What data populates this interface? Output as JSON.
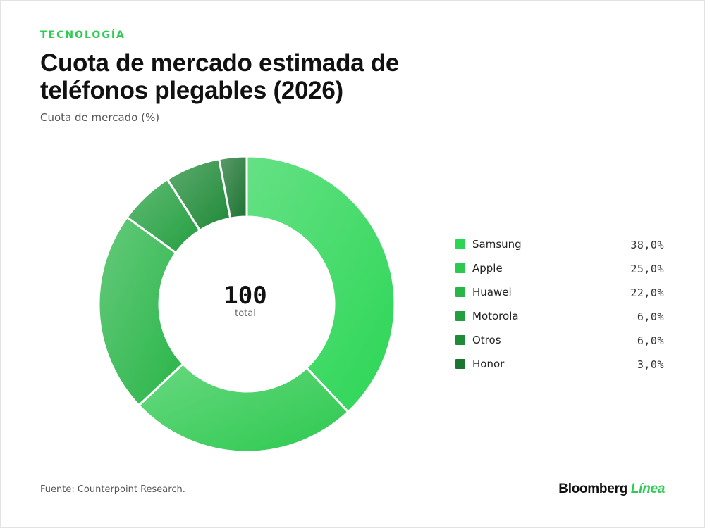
{
  "header": {
    "kicker": "TECNOLOGÍA",
    "title": "Cuota de mercado estimada de teléfonos plegables (2026)",
    "subtitle": "Cuota de mercado (%)"
  },
  "center": {
    "value": "100",
    "label": "total"
  },
  "footer": {
    "source": "Fuente: Counterpoint Research.",
    "logo_main": "Bloomberg",
    "logo_accent": "Línea"
  },
  "colors": {
    "accent": "#2ecc55",
    "slices": [
      "#2bd655",
      "#2dc94f",
      "#29b548",
      "#249f40",
      "#1f8a37",
      "#1c7431"
    ]
  },
  "chart_data": {
    "type": "pie",
    "title": "Cuota de mercado estimada de teléfonos plegables (2026)",
    "subtitle": "Cuota de mercado (%)",
    "unit": "%",
    "legend_position": "right",
    "donut": true,
    "categories": [
      "Samsung",
      "Apple",
      "Huawei",
      "Motorola",
      "Otros",
      "Honor"
    ],
    "values": [
      38.0,
      25.0,
      22.0,
      6.0,
      6.0,
      3.0
    ],
    "value_labels": [
      "38,0%",
      "25,0%",
      "22,0%",
      "6,0%",
      "6,0%",
      "3,0%"
    ],
    "total": 100
  }
}
